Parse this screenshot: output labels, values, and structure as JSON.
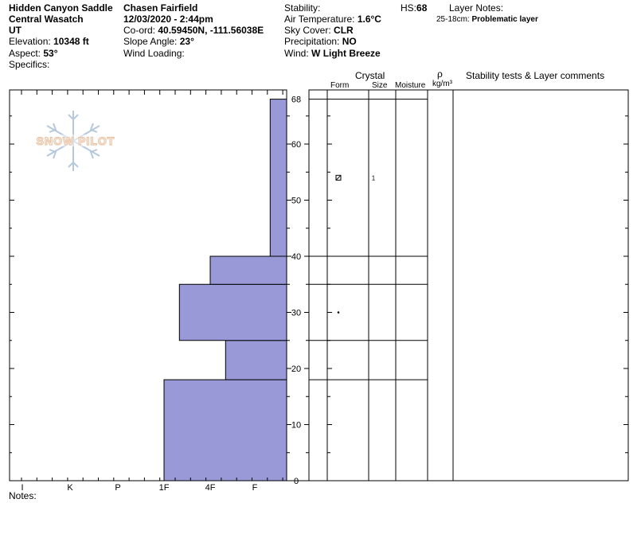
{
  "header": {
    "location": "Hidden Canyon Saddle",
    "range": "Central Wasatch",
    "state": "UT",
    "elevation_label": "Elevation:",
    "elevation": "10348 ft",
    "aspect_label": "Aspect:",
    "aspect": "53°",
    "specifics_label": "Specifics:",
    "observer": "Chasen Fairfield",
    "datetime": "12/03/2020 - 2:44pm",
    "coord_label": "Co-ord:",
    "coord": "40.59450N, -111.56038E",
    "slope_label": "Slope Angle:",
    "slope": "23°",
    "wind_loading_label": "Wind Loading:",
    "stability_label": "Stability:",
    "air_temp_label": "Air Temperature:",
    "air_temp": "1.6°C",
    "sky_label": "Sky Cover:",
    "sky": "CLR",
    "precip_label": "Precipitation:",
    "precip": "NO",
    "wind_label": "Wind:",
    "wind": "W Light Breeze",
    "hs_label": "HS:",
    "hs": "68",
    "layer_notes_label": "Layer Notes:",
    "layer_note_range": "25-18cm:",
    "layer_note_text": "Problematic layer"
  },
  "logo": {
    "text": "SNOW PILOT",
    "icon": "snowflake-icon"
  },
  "columns": {
    "crystal": "Crystal",
    "form": "Form",
    "size": "Size",
    "moisture": "Moisture",
    "rho": "ρ",
    "density_unit": "kg/m³",
    "stability": "Stability tests & Layer comments"
  },
  "notes_label": "Notes:",
  "chart_data": {
    "type": "bar",
    "orientation": "horizontal-step",
    "title": "",
    "x_axis": {
      "ticks": [
        "I",
        "K",
        "P",
        "1F",
        "4F",
        "F"
      ],
      "direction": "reversed"
    },
    "y_axis": {
      "ticks": [
        0,
        10,
        20,
        30,
        40,
        50,
        60,
        68
      ],
      "range": [
        0,
        68
      ],
      "unit": "cm"
    },
    "hardness_layers": [
      {
        "bottom": 0,
        "top": 18,
        "hardness": "1F"
      },
      {
        "bottom": 18,
        "top": 25,
        "hardness": "4F+"
      },
      {
        "bottom": 25,
        "top": 35,
        "hardness": "1F+"
      },
      {
        "bottom": 35,
        "top": 40,
        "hardness": "4F"
      },
      {
        "bottom": 40,
        "top": 68,
        "hardness": "F+"
      }
    ],
    "layer_boundaries": [
      68,
      40,
      35,
      25,
      18
    ],
    "crystals": [
      {
        "height": 54,
        "form": "precipitation-particles-icon",
        "size": "1"
      },
      {
        "height": 30,
        "form": "rounded-grains-icon",
        "size": ""
      }
    ],
    "bar_color": "#9999d8"
  }
}
